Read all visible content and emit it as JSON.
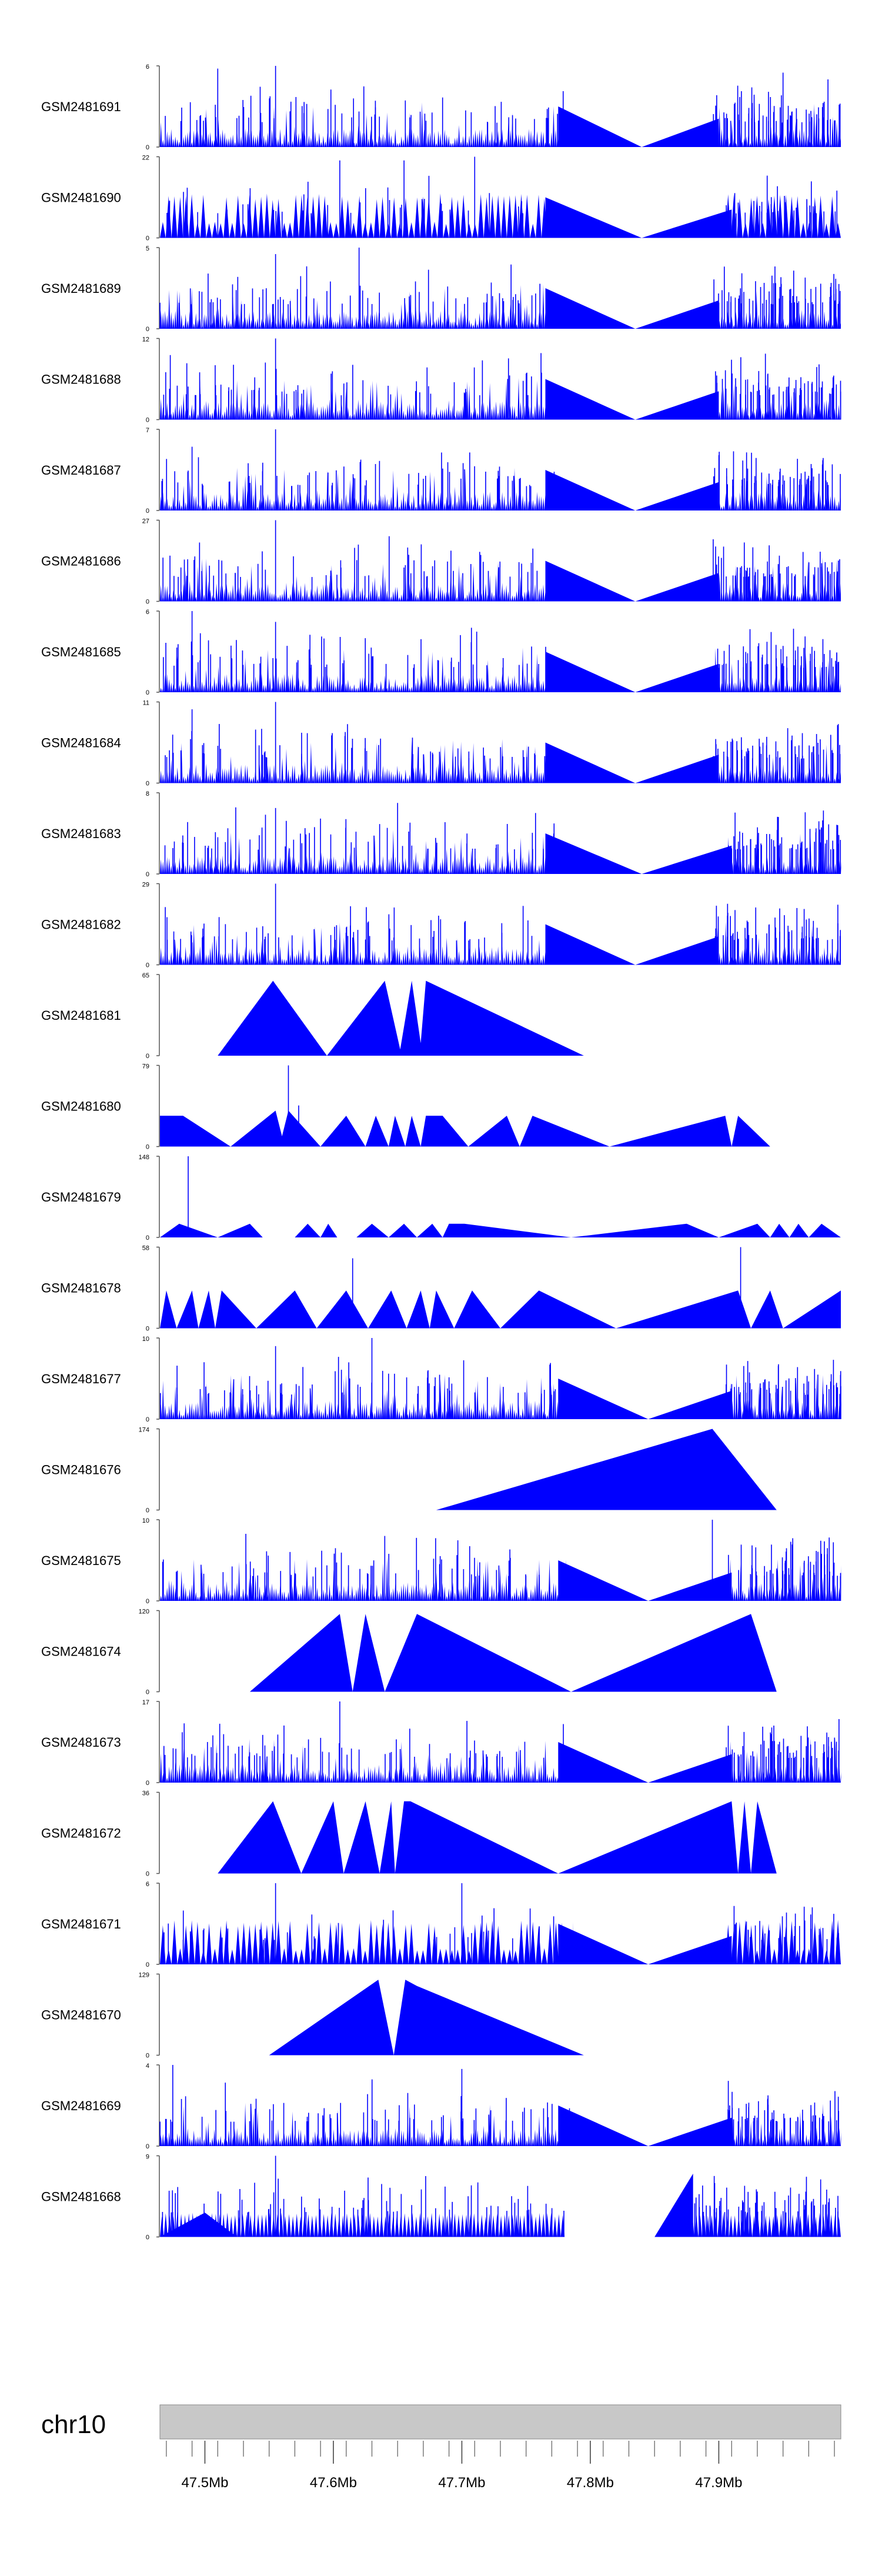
{
  "chart_data": {
    "type": "area",
    "title": "",
    "color": "#0000ff",
    "x_range_mb": [
      47.465,
      47.995
    ],
    "tracks": [
      {
        "name": "GSM2481691",
        "ymax": 6,
        "seed": 11,
        "style": "dense",
        "gap": [
          47.785,
          47.895
        ],
        "peaks": [
          [
            47.555,
            6
          ],
          [
            47.51,
            5.8
          ],
          [
            47.95,
            5.5
          ],
          [
            47.985,
            5
          ]
        ]
      },
      {
        "name": "GSM2481690",
        "ymax": 22,
        "seed": 23,
        "style": "tri",
        "gap": [
          47.775,
          47.905
        ],
        "peaks": [
          [
            47.71,
            22
          ],
          [
            47.605,
            21
          ],
          [
            47.655,
            21
          ]
        ]
      },
      {
        "name": "GSM2481689",
        "ymax": 5,
        "seed": 37,
        "style": "dense",
        "gap": [
          47.775,
          47.895
        ],
        "peaks": [
          [
            47.62,
            5
          ],
          [
            47.555,
            4.6
          ]
        ]
      },
      {
        "name": "GSM2481688",
        "ymax": 12,
        "seed": 41,
        "style": "dense",
        "gap": [
          47.775,
          47.895
        ],
        "peaks": [
          [
            47.555,
            12
          ]
        ]
      },
      {
        "name": "GSM2481687",
        "ymax": 7,
        "seed": 53,
        "style": "dense",
        "gap": [
          47.775,
          47.895
        ],
        "peaks": [
          [
            47.555,
            7
          ],
          [
            47.49,
            5.5
          ]
        ]
      },
      {
        "name": "GSM2481686",
        "ymax": 27,
        "seed": 67,
        "style": "dense",
        "gap": [
          47.775,
          47.895
        ],
        "peaks": [
          [
            47.555,
            27
          ],
          [
            47.993,
            5
          ]
        ]
      },
      {
        "name": "GSM2481685",
        "ymax": 6,
        "seed": 71,
        "style": "dense",
        "gap": [
          47.775,
          47.895
        ],
        "peaks": [
          [
            47.49,
            6
          ],
          [
            47.555,
            5.2
          ]
        ]
      },
      {
        "name": "GSM2481684",
        "ymax": 11,
        "seed": 83,
        "style": "dense",
        "gap": [
          47.775,
          47.895
        ],
        "peaks": [
          [
            47.555,
            11
          ],
          [
            47.49,
            10
          ],
          [
            47.993,
            8
          ]
        ]
      },
      {
        "name": "GSM2481683",
        "ymax": 8,
        "seed": 97,
        "style": "dense",
        "gap": [
          47.775,
          47.905
        ],
        "peaks": [
          [
            47.65,
            7
          ],
          [
            47.555,
            6.5
          ]
        ]
      },
      {
        "name": "GSM2481682",
        "ymax": 29,
        "seed": 101,
        "style": "dense",
        "gap": [
          47.775,
          47.895
        ],
        "peaks": [
          [
            47.555,
            29
          ],
          [
            47.49,
            8
          ]
        ]
      },
      {
        "name": "GSM2481681",
        "ymax": 65,
        "seed": 0,
        "style": "poly",
        "poly": [
          [
            47.51,
            0
          ],
          [
            47.553,
            60
          ],
          [
            47.595,
            0
          ],
          [
            47.64,
            60
          ],
          [
            47.652,
            5
          ],
          [
            47.661,
            60
          ],
          [
            47.668,
            10
          ],
          [
            47.672,
            60
          ],
          [
            47.795,
            0
          ]
        ]
      },
      {
        "name": "GSM2481680",
        "ymax": 79,
        "seed": 0,
        "style": "poly",
        "poly": [
          [
            47.465,
            30
          ],
          [
            47.483,
            30
          ],
          [
            47.52,
            0
          ],
          [
            47.555,
            35
          ],
          [
            47.56,
            10
          ],
          [
            47.565,
            35
          ],
          [
            47.59,
            0
          ],
          [
            47.61,
            30
          ],
          [
            47.625,
            0
          ],
          [
            47.633,
            30
          ],
          [
            47.643,
            0
          ],
          [
            47.648,
            30
          ],
          [
            47.656,
            0
          ],
          [
            47.661,
            30
          ],
          [
            47.668,
            0
          ],
          [
            47.672,
            30
          ],
          [
            47.685,
            30
          ],
          [
            47.705,
            0
          ],
          [
            47.735,
            30
          ],
          [
            47.745,
            0
          ],
          [
            47.755,
            30
          ],
          [
            47.815,
            0
          ],
          [
            47.905,
            30
          ],
          [
            47.91,
            0
          ],
          [
            47.915,
            30
          ],
          [
            47.94,
            0
          ]
        ],
        "spikes": [
          [
            47.565,
            79
          ],
          [
            47.573,
            40
          ]
        ]
      },
      {
        "name": "GSM2481679",
        "ymax": 148,
        "seed": 0,
        "style": "poly",
        "poly": [
          [
            47.465,
            0
          ],
          [
            47.48,
            25
          ],
          [
            47.51,
            0
          ],
          [
            47.535,
            25
          ],
          [
            47.545,
            0
          ],
          [
            47.57,
            0
          ],
          [
            47.58,
            25
          ],
          [
            47.59,
            0
          ],
          [
            47.596,
            25
          ],
          [
            47.603,
            0
          ],
          [
            47.618,
            0
          ],
          [
            47.63,
            25
          ],
          [
            47.643,
            0
          ],
          [
            47.655,
            25
          ],
          [
            47.665,
            0
          ],
          [
            47.677,
            25
          ],
          [
            47.685,
            0
          ],
          [
            47.69,
            25
          ],
          [
            47.702,
            25
          ],
          [
            47.785,
            0
          ],
          [
            47.875,
            25
          ],
          [
            47.9,
            0
          ],
          [
            47.93,
            25
          ],
          [
            47.94,
            0
          ],
          [
            47.947,
            25
          ],
          [
            47.955,
            0
          ],
          [
            47.962,
            25
          ],
          [
            47.97,
            0
          ],
          [
            47.98,
            25
          ],
          [
            47.995,
            0
          ]
        ],
        "spikes": [
          [
            47.487,
            148
          ]
        ]
      },
      {
        "name": "GSM2481678",
        "ymax": 58,
        "seed": 0,
        "style": "poly",
        "poly": [
          [
            47.465,
            0
          ],
          [
            47.47,
            27
          ],
          [
            47.478,
            0
          ],
          [
            47.49,
            27
          ],
          [
            47.495,
            0
          ],
          [
            47.503,
            27
          ],
          [
            47.508,
            0
          ],
          [
            47.513,
            27
          ],
          [
            47.54,
            0
          ],
          [
            47.57,
            27
          ],
          [
            47.587,
            0
          ],
          [
            47.61,
            27
          ],
          [
            47.627,
            0
          ],
          [
            47.645,
            27
          ],
          [
            47.657,
            0
          ],
          [
            47.668,
            27
          ],
          [
            47.675,
            0
          ],
          [
            47.68,
            27
          ],
          [
            47.694,
            0
          ],
          [
            47.708,
            27
          ],
          [
            47.73,
            0
          ],
          [
            47.76,
            27
          ],
          [
            47.82,
            0
          ],
          [
            47.915,
            27
          ],
          [
            47.925,
            0
          ],
          [
            47.94,
            27
          ],
          [
            47.95,
            0
          ],
          [
            47.995,
            27
          ]
        ],
        "spikes": [
          [
            47.615,
            50
          ],
          [
            47.917,
            58
          ]
        ]
      },
      {
        "name": "GSM2481677",
        "ymax": 10,
        "seed": 131,
        "style": "dense",
        "gap": [
          47.785,
          47.905
        ],
        "peaks": [
          [
            47.555,
            9
          ],
          [
            47.63,
            10
          ],
          [
            47.612,
            7
          ]
        ]
      },
      {
        "name": "GSM2481676",
        "ymax": 174,
        "seed": 0,
        "style": "poly",
        "poly": [
          [
            47.68,
            0
          ],
          [
            47.895,
            174
          ],
          [
            47.945,
            0
          ]
        ]
      },
      {
        "name": "GSM2481675",
        "ymax": 10,
        "seed": 149,
        "style": "dense",
        "gap": [
          47.785,
          47.905
        ],
        "peaks": [
          [
            47.895,
            10
          ],
          [
            47.64,
            8
          ]
        ]
      },
      {
        "name": "GSM2481674",
        "ymax": 120,
        "seed": 0,
        "style": "poly",
        "poly": [
          [
            47.535,
            0
          ],
          [
            47.605,
            115
          ],
          [
            47.615,
            0
          ],
          [
            47.625,
            115
          ],
          [
            47.64,
            0
          ],
          [
            47.665,
            115
          ],
          [
            47.785,
            0
          ],
          [
            47.925,
            115
          ],
          [
            47.945,
            0
          ]
        ]
      },
      {
        "name": "GSM2481673",
        "ymax": 17,
        "seed": 157,
        "style": "dense",
        "gap": [
          47.785,
          47.905
        ],
        "peaks": [
          [
            47.605,
            17
          ],
          [
            47.545,
            10
          ]
        ]
      },
      {
        "name": "GSM2481672",
        "ymax": 36,
        "seed": 0,
        "style": "poly",
        "poly": [
          [
            47.51,
            0
          ],
          [
            47.553,
            32
          ],
          [
            47.575,
            0
          ],
          [
            47.6,
            32
          ],
          [
            47.608,
            0
          ],
          [
            47.625,
            32
          ],
          [
            47.636,
            0
          ],
          [
            47.645,
            32
          ],
          [
            47.648,
            0
          ],
          [
            47.655,
            32
          ],
          [
            47.66,
            32
          ],
          [
            47.775,
            0
          ],
          [
            47.91,
            32
          ],
          [
            47.915,
            0
          ],
          [
            47.92,
            32
          ],
          [
            47.925,
            0
          ],
          [
            47.93,
            32
          ],
          [
            47.945,
            0
          ]
        ]
      },
      {
        "name": "GSM2481671",
        "ymax": 6,
        "seed": 173,
        "style": "tri",
        "gap": [
          47.785,
          47.905
        ],
        "peaks": [
          [
            47.555,
            6
          ],
          [
            47.7,
            6
          ]
        ]
      },
      {
        "name": "GSM2481670",
        "ymax": 129,
        "seed": 0,
        "style": "poly",
        "poly": [
          [
            47.55,
            0
          ],
          [
            47.635,
            120
          ],
          [
            47.647,
            0
          ],
          [
            47.656,
            120
          ],
          [
            47.665,
            110
          ],
          [
            47.795,
            0
          ]
        ]
      },
      {
        "name": "GSM2481669",
        "ymax": 4,
        "seed": 191,
        "style": "dense",
        "gap": [
          47.785,
          47.905
        ],
        "peaks": [
          [
            47.475,
            4
          ],
          [
            47.7,
            3.8
          ]
        ]
      },
      {
        "name": "GSM2481668",
        "ymax": 9,
        "seed": 199,
        "style": "comb",
        "gap": [
          47.78,
          47.875
        ],
        "peaks": [
          [
            47.555,
            9
          ]
        ],
        "ramp": [
          47.85,
          47.88
        ]
      }
    ],
    "ideogram": {
      "chromosome": "chr10",
      "xlabel": "",
      "ticks_mb": [
        47.5,
        47.6,
        47.7,
        47.8,
        47.9
      ],
      "tick_labels": [
        "47.5Mb",
        "47.6Mb",
        "47.7Mb",
        "47.8Mb",
        "47.9Mb"
      ],
      "minor_step_mb": 0.02
    }
  }
}
